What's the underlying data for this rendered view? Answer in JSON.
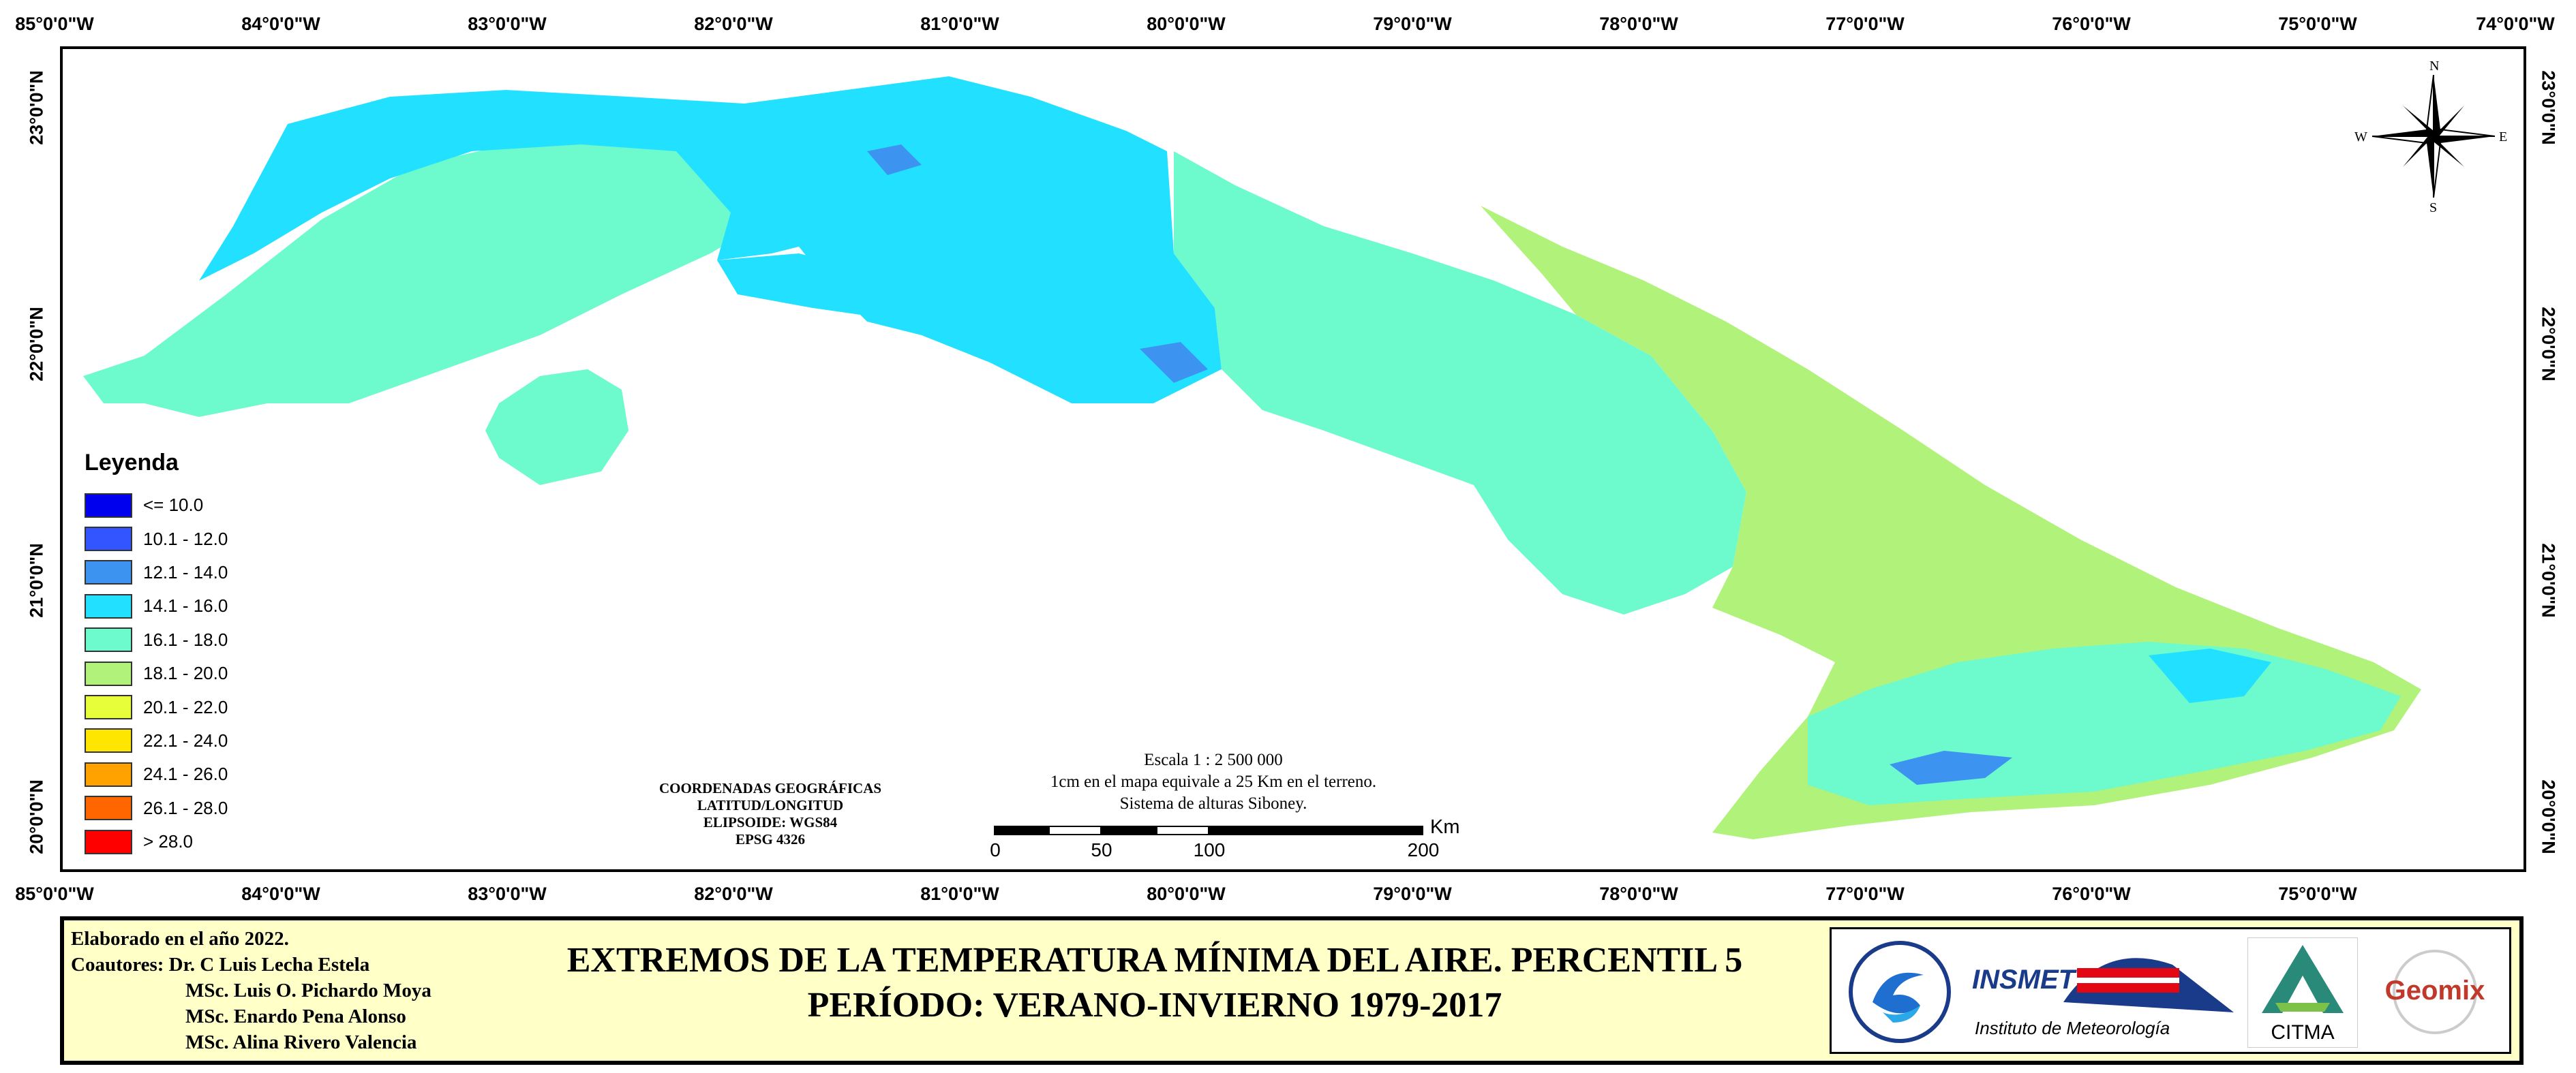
{
  "map": {
    "longitude_labels": [
      "85°0'0\"W",
      "84°0'0\"W",
      "83°0'0\"W",
      "82°0'0\"W",
      "81°0'0\"W",
      "80°0'0\"W",
      "79°0'0\"W",
      "78°0'0\"W",
      "77°0'0\"W",
      "76°0'0\"W",
      "75°0'0\"W",
      "74°0'0\"W"
    ],
    "latitude_labels": [
      "23°0'0\"N",
      "22°0'0\"N",
      "21°0'0\"N",
      "20°0'0\"N"
    ],
    "compass": {
      "n": "N",
      "s": "S",
      "e": "E",
      "w": "W"
    }
  },
  "legend": {
    "title": "Leyenda",
    "items": [
      {
        "label": "<= 10.0",
        "color": "#0000ee"
      },
      {
        "label": "10.1 - 12.0",
        "color": "#3355ff"
      },
      {
        "label": "12.1 - 14.0",
        "color": "#3d94f0"
      },
      {
        "label": "14.1 - 16.0",
        "color": "#22e0ff"
      },
      {
        "label": "16.1 - 18.0",
        "color": "#6dfacc"
      },
      {
        "label": "18.1 - 20.0",
        "color": "#b0f27a"
      },
      {
        "label": "20.1 - 22.0",
        "color": "#e6ff3a"
      },
      {
        "label": "22.1 - 24.0",
        "color": "#ffe600"
      },
      {
        "label": "24.1 - 26.0",
        "color": "#ffa200"
      },
      {
        "label": "26.1 - 28.0",
        "color": "#ff6600"
      },
      {
        "label": "> 28.0",
        "color": "#ff0000"
      }
    ]
  },
  "coordinates_block": [
    "COORDENADAS GEOGRÁFICAS",
    "LATITUD/LONGITUD",
    "ELIPSOIDE: WGS84",
    "EPSG 4326"
  ],
  "scale": {
    "lines": [
      "Escala 1 : 2 500 000",
      "1cm en el mapa equivale a 25 Km en el terreno.",
      "Sistema de alturas Siboney."
    ],
    "ticks": [
      "0",
      "50",
      "100",
      "200"
    ],
    "unit": "Km"
  },
  "footer": {
    "elaborado": "Elaborado en el año 2022.",
    "coautores_label": "Coautores:",
    "authors": [
      "Dr. C Luis Lecha Estela",
      "MSc. Luis O. Pichardo Moya",
      "MSc. Enardo Pena Alonso",
      "MSc. Alina Rivero Valencia"
    ],
    "title_line1": "EXTREMOS DE LA TEMPERATURA MÍNIMA DEL AIRE. PERCENTIL 5",
    "title_line2": "PERÍODO: VERANO-INVIERNO 1979-2017"
  },
  "logos": {
    "insmet_name": "INSMET",
    "insmet_sub": "Instituto de Meteorología",
    "citma": "CITMA",
    "geomix": "Geomix"
  }
}
